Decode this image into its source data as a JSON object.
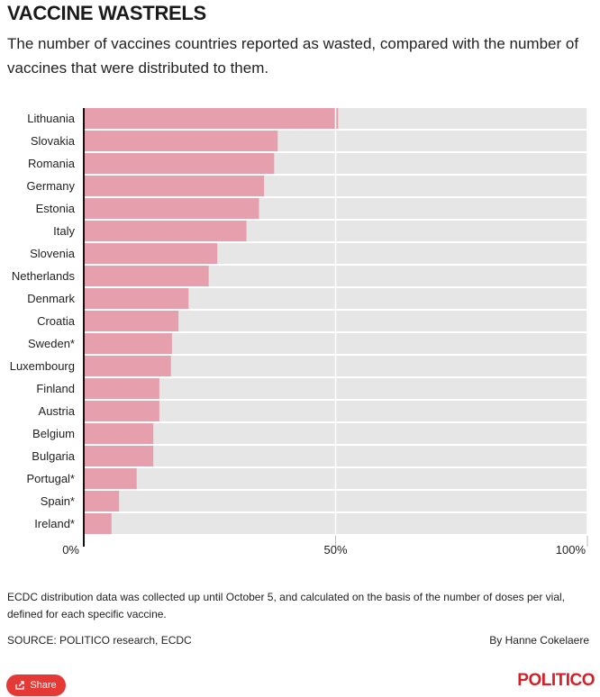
{
  "header": {
    "title": "VACCINE WASTRELS",
    "subtitle": "The number of vaccines countries reported as wasted, compared with the number of vaccines that were distributed to them."
  },
  "chart_data": {
    "type": "bar",
    "orientation": "horizontal",
    "categories": [
      "Lithuania",
      "Slovakia",
      "Romania",
      "Germany",
      "Estonia",
      "Italy",
      "Slovenia",
      "Netherlands",
      "Denmark",
      "Croatia",
      "Sweden*",
      "Luxembourg",
      "Finland",
      "Austria",
      "Belgium",
      "Bulgaria",
      "Portugal*",
      "Spain*",
      "Ireland*"
    ],
    "values": [
      50.5,
      38.5,
      37.8,
      35.8,
      34.8,
      32.3,
      26.5,
      24.8,
      20.8,
      18.8,
      17.5,
      17.3,
      15.0,
      15.0,
      13.8,
      13.8,
      10.5,
      7.0,
      5.5
    ],
    "xlim": [
      0,
      100
    ],
    "xticks": [
      "0%",
      "50%",
      "100%"
    ],
    "title": "VACCINE WASTRELS",
    "xlabel": "",
    "ylabel": "",
    "colors": {
      "bar": "#e59fad",
      "track": "#e6e6e6",
      "axis": "#111111"
    }
  },
  "footer": {
    "note": "ECDC distribution data was collected up until October 5, and calculated on the basis of the number of doses per vial, defined for each specific vaccine.",
    "source": "SOURCE: POLITICO research, ECDC",
    "byline": "By Hanne Cokelaere",
    "share_label": "Share",
    "share_icon": "share-icon",
    "brand": "POLITICO",
    "brand_color": "#d81e27"
  }
}
